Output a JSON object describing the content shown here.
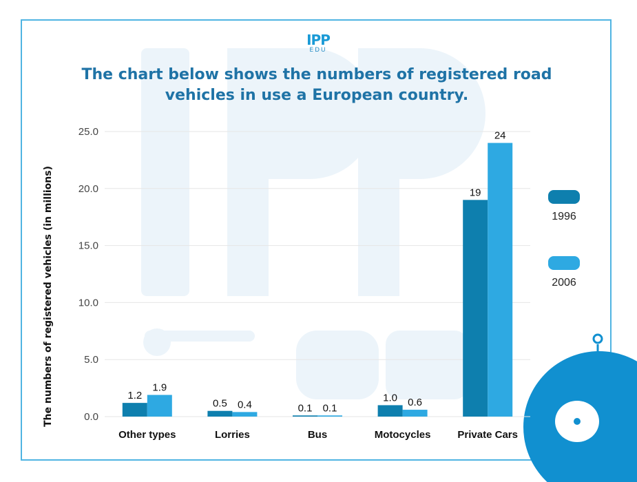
{
  "logo": {
    "main": "IPP",
    "sub": "EDU"
  },
  "colors": {
    "series_1996": "#0e7fae",
    "series_2006": "#2ea9e2",
    "border": "#4fb4e2",
    "title": "#1f73a6",
    "grid": "#e6e6e6"
  },
  "chart_data": {
    "type": "bar",
    "title": "The chart below shows the numbers of registered road vehicles in use a European country.",
    "title_lines": [
      "The chart below shows the numbers of registered road",
      "vehicles in use a European country."
    ],
    "xlabel": "",
    "ylabel": "The numbers of registered vehicles (in millions)",
    "ylim": [
      0,
      25
    ],
    "yticks": [
      0,
      5,
      10,
      15,
      20,
      25
    ],
    "ytick_labels": [
      "0.0",
      "5.0",
      "10.0",
      "15.0",
      "20.0",
      "25.0"
    ],
    "categories": [
      "Other types",
      "Lorries",
      "Bus",
      "Motocycles",
      "Private Cars"
    ],
    "series": [
      {
        "name": "1996",
        "values": [
          1.2,
          0.5,
          0.1,
          1.0,
          19
        ],
        "labels": [
          "1.2",
          "0.5",
          "0.1",
          "1.0",
          "19"
        ]
      },
      {
        "name": "2006",
        "values": [
          1.9,
          0.4,
          0.1,
          0.6,
          24
        ],
        "labels": [
          "1.9",
          "0.4",
          "0.1",
          "0.6",
          "24"
        ]
      }
    ],
    "legend_position": "right",
    "grid": true
  }
}
